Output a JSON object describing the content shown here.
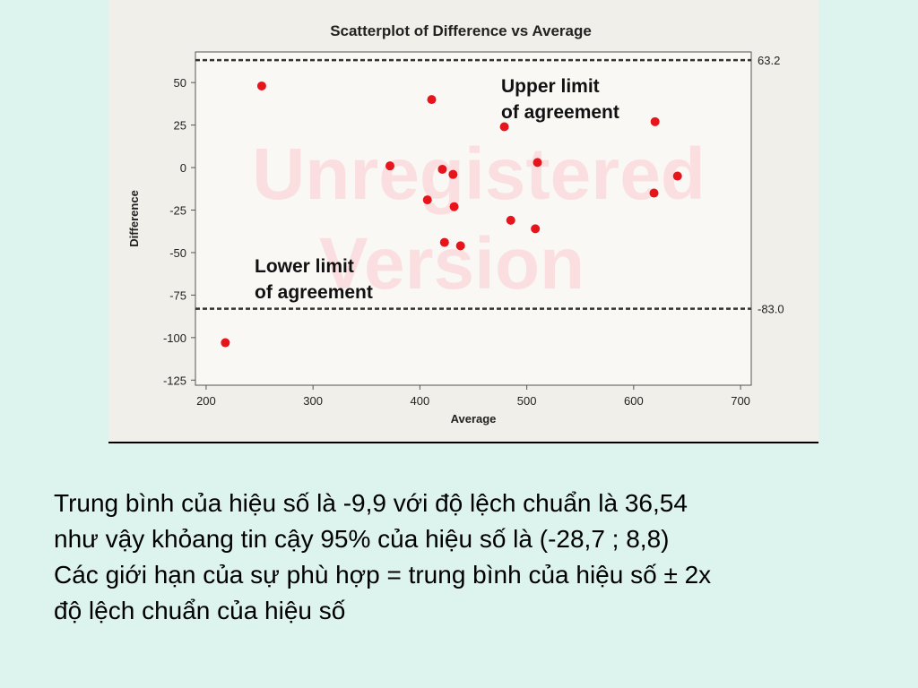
{
  "chart_data": {
    "type": "scatter",
    "title": "Scatterplot of Difference vs Average",
    "xlabel": "Average",
    "ylabel": "Difference",
    "xlim": [
      190,
      710
    ],
    "ylim": [
      -128,
      68
    ],
    "xticks": [
      200,
      300,
      400,
      500,
      600,
      700
    ],
    "yticks": [
      50,
      25,
      0,
      -25,
      -50,
      -75,
      -100,
      -125
    ],
    "grid": false,
    "points": [
      {
        "x": 218,
        "y": -103
      },
      {
        "x": 252,
        "y": 48
      },
      {
        "x": 372,
        "y": 1
      },
      {
        "x": 407,
        "y": -19
      },
      {
        "x": 411,
        "y": 40
      },
      {
        "x": 421,
        "y": -1
      },
      {
        "x": 423,
        "y": -44
      },
      {
        "x": 431,
        "y": -4
      },
      {
        "x": 432,
        "y": -23
      },
      {
        "x": 438,
        "y": -46
      },
      {
        "x": 479,
        "y": 24
      },
      {
        "x": 485,
        "y": -31
      },
      {
        "x": 508,
        "y": -36
      },
      {
        "x": 510,
        "y": 3
      },
      {
        "x": 619,
        "y": -15
      },
      {
        "x": 620,
        "y": 27
      },
      {
        "x": 641,
        "y": -5
      }
    ],
    "reference_lines": [
      {
        "y": 63.2,
        "label": "63.2",
        "style": "dashed"
      },
      {
        "y": -83.0,
        "label": "-83.0",
        "style": "dashed"
      }
    ],
    "annotations": [
      {
        "lines": [
          "Upper limit",
          "of agreement"
        ]
      },
      {
        "lines": [
          "Lower limit",
          "of agreement"
        ]
      }
    ],
    "watermark": [
      "Unregistered",
      "Version"
    ],
    "colors": {
      "points": "#e8141c",
      "watermark": "#f5a7ab",
      "frame": "#555555"
    }
  },
  "caption": [
    "Trung bình của hiệu số là -9,9 với độ lệch chuẩn là 36,54",
    "như vậy khỏang tin cậy 95% của hiệu số là  (-28,7 ; 8,8)",
    "Các giới hạn của sự phù hợp = trung bình của hiệu số ± 2x",
    "độ lệch chuẩn của hiệu số"
  ]
}
